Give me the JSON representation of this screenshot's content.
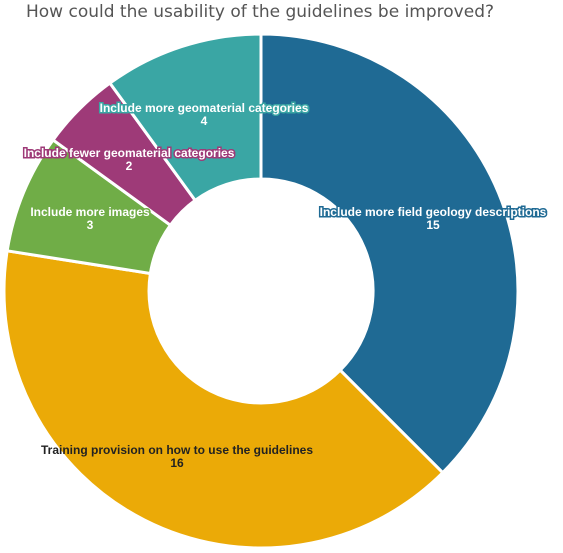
{
  "chart_data": {
    "type": "pie",
    "title": "How could the usability of the guidelines be improved?",
    "hole": "donut",
    "slices": [
      {
        "label": "Include more field geology descriptions",
        "value": 15,
        "color": "#1f6a94"
      },
      {
        "label": "Training provision on how to use the guidelines",
        "value": 16,
        "color": "#ebaa07"
      },
      {
        "label": "Include more images",
        "value": 3,
        "color": "#70ad47"
      },
      {
        "label": "Include fewer geomaterial categories",
        "value": 2,
        "color": "#9e3a78"
      },
      {
        "label": "Include more geomaterial categories",
        "value": 4,
        "color": "#3aa6a4"
      }
    ]
  }
}
